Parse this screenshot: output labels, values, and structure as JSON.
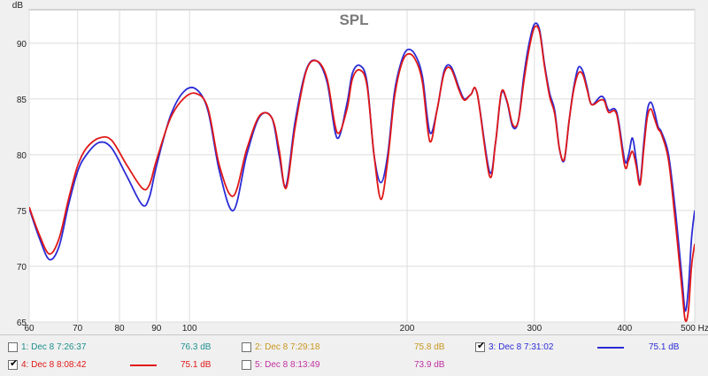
{
  "chart_data": {
    "type": "line",
    "title": "SPL",
    "ylabel": "dB",
    "xunit": "Hz",
    "xscale": "log",
    "xlim": [
      60,
      500
    ],
    "ylim": [
      65,
      93
    ],
    "grid": true,
    "xticks": [
      60,
      70,
      80,
      90,
      100,
      200,
      300,
      400,
      500
    ],
    "xtick_labels": [
      "60",
      "70",
      "80",
      "90",
      "100",
      "200",
      "300",
      "400",
      "500 Hz"
    ],
    "yticks": [
      65,
      70,
      75,
      80,
      85,
      90
    ],
    "series": [
      {
        "name": "Dec 8 7:31:02",
        "color": "#2b2bd6",
        "x": [
          60,
          62,
          64,
          66,
          68,
          70,
          72,
          75,
          78,
          82,
          86,
          88,
          90,
          94,
          98,
          102,
          106,
          110,
          115,
          120,
          125,
          130,
          133,
          136,
          140,
          145,
          150,
          155,
          160,
          165,
          168,
          172,
          176,
          180,
          184,
          188,
          192,
          196,
          200,
          205,
          210,
          215,
          220,
          225,
          230,
          236,
          240,
          245,
          250,
          260,
          265,
          270,
          275,
          280,
          285,
          290,
          295,
          300,
          305,
          310,
          315,
          320,
          325,
          330,
          335,
          340,
          345,
          350,
          355,
          360,
          370,
          375,
          380,
          390,
          400,
          405,
          410,
          415,
          420,
          425,
          430,
          435,
          440,
          445,
          450,
          460,
          470,
          480,
          485,
          490,
          495,
          500
        ],
        "values": [
          75.2,
          72.5,
          70.6,
          71.8,
          75.5,
          78.5,
          80.0,
          81.1,
          80.6,
          78.0,
          75.5,
          76.2,
          79.0,
          83.4,
          85.6,
          85.9,
          84.0,
          78.5,
          75.0,
          80.0,
          83.4,
          83.3,
          80.0,
          77.2,
          83.0,
          87.6,
          88.4,
          86.5,
          81.5,
          84.5,
          87.3,
          88.0,
          86.5,
          80.0,
          77.5,
          80.0,
          85.5,
          88.2,
          89.4,
          89.0,
          87.0,
          82.0,
          84.0,
          87.5,
          87.9,
          86.0,
          85.0,
          85.4,
          85.5,
          78.5,
          81.0,
          85.5,
          84.7,
          82.5,
          83.0,
          87.0,
          90.0,
          91.7,
          91.2,
          88.0,
          85.5,
          84.0,
          80.5,
          79.5,
          83.0,
          86.0,
          87.8,
          87.5,
          86.0,
          84.5,
          85.2,
          85.0,
          84.0,
          83.8,
          79.5,
          80.0,
          81.5,
          79.5,
          77.5,
          81.0,
          84.0,
          84.7,
          83.8,
          82.5,
          82.0,
          80.0,
          75.0,
          69.0,
          66.0,
          68.0,
          72.5,
          75.0
        ]
      },
      {
        "name": "Dec 8 8:08:42",
        "color": "#e01818",
        "x": [
          60,
          62,
          64,
          66,
          68,
          70,
          72,
          75,
          78,
          82,
          86,
          88,
          90,
          94,
          98,
          102,
          106,
          110,
          115,
          120,
          125,
          130,
          133,
          136,
          140,
          145,
          150,
          155,
          160,
          165,
          168,
          172,
          176,
          180,
          184,
          188,
          192,
          196,
          200,
          205,
          210,
          215,
          220,
          225,
          230,
          236,
          240,
          245,
          250,
          260,
          265,
          270,
          275,
          280,
          285,
          290,
          295,
          300,
          305,
          310,
          315,
          320,
          325,
          330,
          335,
          340,
          345,
          350,
          355,
          360,
          370,
          375,
          380,
          390,
          400,
          405,
          410,
          415,
          420,
          425,
          430,
          435,
          440,
          445,
          450,
          460,
          470,
          480,
          485,
          490,
          495,
          500
        ],
        "values": [
          75.3,
          72.8,
          71.1,
          72.5,
          76.0,
          79.0,
          80.6,
          81.5,
          81.3,
          79.0,
          77.0,
          77.3,
          79.5,
          83.2,
          85.0,
          85.5,
          84.2,
          79.0,
          76.3,
          80.5,
          83.5,
          83.3,
          80.5,
          77.0,
          82.5,
          87.5,
          88.4,
          86.8,
          82.0,
          84.0,
          86.8,
          87.6,
          86.2,
          80.0,
          76.0,
          79.5,
          85.0,
          87.9,
          89.0,
          88.6,
          86.5,
          81.2,
          84.0,
          87.3,
          87.7,
          85.8,
          84.9,
          85.4,
          85.5,
          78.1,
          81.0,
          85.6,
          84.8,
          82.7,
          83.0,
          86.5,
          89.5,
          91.4,
          91.0,
          87.8,
          85.2,
          83.7,
          80.5,
          79.6,
          83.0,
          85.8,
          87.3,
          87.2,
          85.8,
          84.5,
          84.9,
          84.8,
          83.8,
          83.6,
          79.0,
          79.5,
          80.3,
          79.0,
          77.3,
          80.5,
          83.4,
          84.1,
          83.2,
          82.3,
          81.8,
          79.5,
          74.0,
          68.0,
          65.2,
          66.0,
          70.0,
          72.0
        ]
      }
    ]
  },
  "legend": [
    {
      "label": "1: Dec 8 7:26:37",
      "value": "76.3 dB",
      "checked": false,
      "color": "#1f8f8f",
      "show_swatch": false
    },
    {
      "label": "2: Dec 8 7:29:18",
      "value": "75.8 dB",
      "checked": false,
      "color": "#c8961e",
      "show_swatch": false
    },
    {
      "label": "3: Dec 8 7:31:02",
      "value": "75.1 dB",
      "checked": true,
      "color": "#2b2bd6",
      "show_swatch": true
    },
    {
      "label": "4: Dec 8 8:08:42",
      "value": "75.1 dB",
      "checked": true,
      "color": "#e01818",
      "show_swatch": true
    },
    {
      "label": "5: Dec 8 8:13:49",
      "value": "73.9 dB",
      "checked": false,
      "color": "#c030a0",
      "show_swatch": false
    }
  ]
}
